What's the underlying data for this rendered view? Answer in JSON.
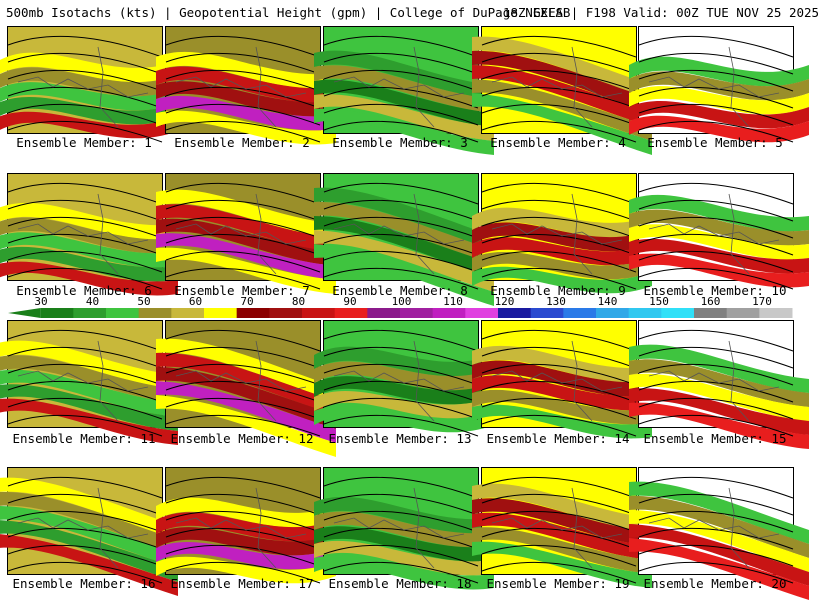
{
  "header": {
    "left": "500mb Isotachs (kts) | Geopotential Height (gpm) | College of DuPage NEXLAB",
    "right": "18Z GEFS | F198 Valid: 00Z TUE NOV 25 2025"
  },
  "colorbar": {
    "labels": [
      "30",
      "40",
      "50",
      "60",
      "70",
      "80",
      "90",
      "100",
      "110",
      "120",
      "130",
      "140",
      "150",
      "160",
      "170"
    ],
    "colors": [
      "#1a7f1a",
      "#2e9e2e",
      "#3fc43f",
      "#9a8f2a",
      "#c8b83a",
      "#ffff00",
      "#8b0000",
      "#a01010",
      "#c81414",
      "#e81e1e",
      "#8b1a8b",
      "#a020a0",
      "#c020c0",
      "#e040e0",
      "#1a1aa0",
      "#2a4ad0",
      "#2a7ae8",
      "#30a8e8",
      "#30c8f0",
      "#30e0f8",
      "#808080",
      "#a0a0a0",
      "#c8c8c8"
    ]
  },
  "members": [
    {
      "caption": "Ensemble Member: 1"
    },
    {
      "caption": "Ensemble Member: 2"
    },
    {
      "caption": "Ensemble Member: 3"
    },
    {
      "caption": "Ensemble Member: 4"
    },
    {
      "caption": "Ensemble Member: 5"
    },
    {
      "caption": "Ensemble Member: 6"
    },
    {
      "caption": "Ensemble Member: 7"
    },
    {
      "caption": "Ensemble Member: 8"
    },
    {
      "caption": "Ensemble Member: 9"
    },
    {
      "caption": "Ensemble Member: 10"
    },
    {
      "caption": "Ensemble Member: 11"
    },
    {
      "caption": "Ensemble Member: 12"
    },
    {
      "caption": "Ensemble Member: 13"
    },
    {
      "caption": "Ensemble Member: 14"
    },
    {
      "caption": "Ensemble Member: 15"
    },
    {
      "caption": "Ensemble Member: 16"
    },
    {
      "caption": "Ensemble Member: 17"
    },
    {
      "caption": "Ensemble Member: 18"
    },
    {
      "caption": "Ensemble Member: 19"
    },
    {
      "caption": "Ensemble Member: 20"
    }
  ]
}
